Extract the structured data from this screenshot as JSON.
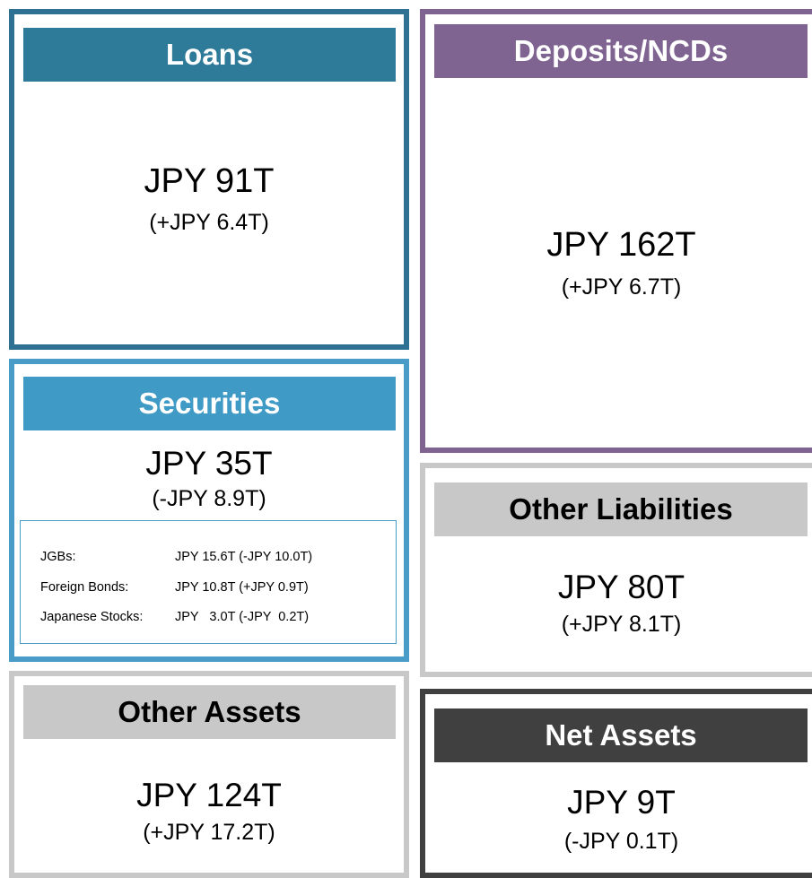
{
  "boxes": [
    {
      "title": "Loans",
      "value": "JPY 91T",
      "change": "(+JPY 6.4T)"
    },
    {
      "title": "Deposits/NCDs",
      "value": "JPY 162T",
      "change": "(+JPY 6.7T)"
    },
    {
      "title": "Securities",
      "value": "JPY 35T",
      "change": "(-JPY 8.9T)",
      "details": [
        {
          "label": "JGBs:",
          "text": "JPY 15.6T (-JPY 10.0T)"
        },
        {
          "label": "Foreign Bonds:",
          "text": "JPY 10.8T (+JPY 0.9T)"
        },
        {
          "label": "Japanese Stocks:",
          "text": "JPY   3.0T (-JPY  0.2T)"
        }
      ]
    },
    {
      "title": "Other Liabilities",
      "value": "JPY 80T",
      "change": "(+JPY 8.1T)"
    },
    {
      "title": "Other Assets",
      "value": "JPY 124T",
      "change": "(+JPY 17.2T)"
    },
    {
      "title": "Net Assets",
      "value": "JPY 9T",
      "change": "(-JPY 0.1T)"
    }
  ]
}
